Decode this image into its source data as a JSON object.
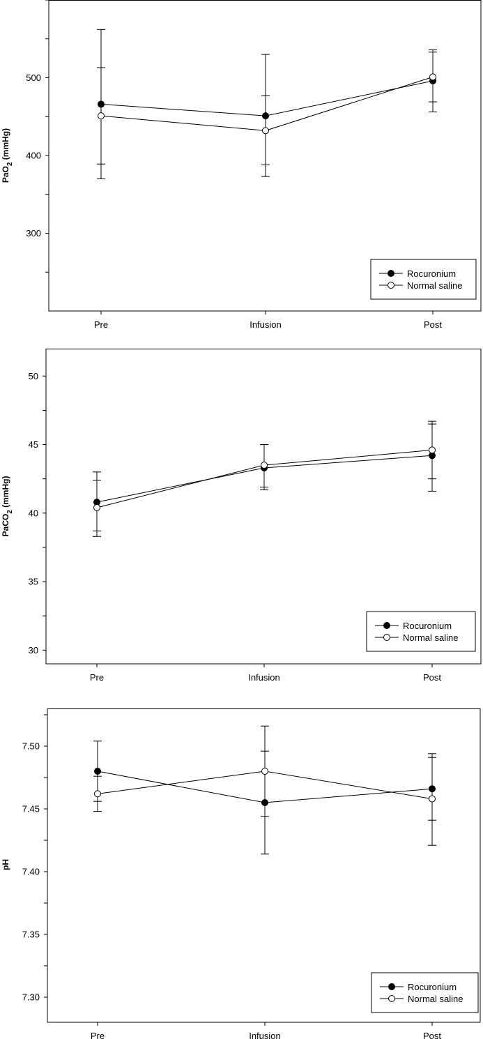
{
  "chart_data": [
    {
      "type": "line",
      "ylabel_main": "PaO",
      "ylabel_sub": "2",
      "ylabel_tail": " (mmHg)",
      "categories": [
        "Pre",
        "Infusion",
        "Post"
      ],
      "ylim": [
        200,
        600
      ],
      "yticks": [
        300,
        400,
        500
      ],
      "ytick_labels": [
        "300",
        "400",
        "500"
      ],
      "grid": false,
      "legend": "bottom-right",
      "series": [
        {
          "name": "Rocuronium",
          "marker": "filled-circle",
          "values": [
            466,
            451,
            496
          ],
          "err_upper": [
            562,
            530,
            533
          ],
          "err_lower": [
            370,
            373,
            456
          ]
        },
        {
          "name": "Normal saline",
          "marker": "open-circle",
          "values": [
            451,
            432,
            501
          ],
          "err_upper": [
            513,
            477,
            536
          ],
          "err_lower": [
            389,
            388,
            469
          ]
        }
      ]
    },
    {
      "type": "line",
      "ylabel_main": "PaCO",
      "ylabel_sub": "2",
      "ylabel_tail": " (mmHg)",
      "categories": [
        "Pre",
        "Infusion",
        "Post"
      ],
      "ylim": [
        29,
        52
      ],
      "yticks": [
        30,
        35,
        40,
        45,
        50
      ],
      "ytick_labels": [
        "30",
        "35",
        "40",
        "45",
        "50"
      ],
      "grid": false,
      "legend": "bottom-right",
      "series": [
        {
          "name": "Rocuronium",
          "marker": "filled-circle",
          "values": [
            40.8,
            43.3,
            44.2
          ],
          "err_upper": [
            43.0,
            45.0,
            46.5
          ],
          "err_lower": [
            38.7,
            41.7,
            41.6
          ]
        },
        {
          "name": "Normal saline",
          "marker": "open-circle",
          "values": [
            40.4,
            43.5,
            44.6
          ],
          "err_upper": [
            42.4,
            45.0,
            46.7
          ],
          "err_lower": [
            38.3,
            41.9,
            42.5
          ]
        }
      ]
    },
    {
      "type": "line",
      "ylabel_main": "pH",
      "ylabel_sub": "",
      "ylabel_tail": "",
      "categories": [
        "Pre",
        "Infusion",
        "Post"
      ],
      "ylim": [
        7.28,
        7.53
      ],
      "yticks": [
        7.3,
        7.35,
        7.4,
        7.45,
        7.5
      ],
      "ytick_labels": [
        "7.30",
        "7.35",
        "7.40",
        "7.45",
        "7.50"
      ],
      "grid": false,
      "legend": "bottom-right",
      "series": [
        {
          "name": "Rocuronium",
          "marker": "filled-circle",
          "values": [
            7.48,
            7.455,
            7.466
          ],
          "err_upper": [
            7.504,
            7.496,
            7.491
          ],
          "err_lower": [
            7.456,
            7.414,
            7.441
          ]
        },
        {
          "name": "Normal saline",
          "marker": "open-circle",
          "values": [
            7.462,
            7.48,
            7.458
          ],
          "err_upper": [
            7.476,
            7.516,
            7.494
          ],
          "err_lower": [
            7.448,
            7.444,
            7.421
          ]
        }
      ]
    }
  ]
}
